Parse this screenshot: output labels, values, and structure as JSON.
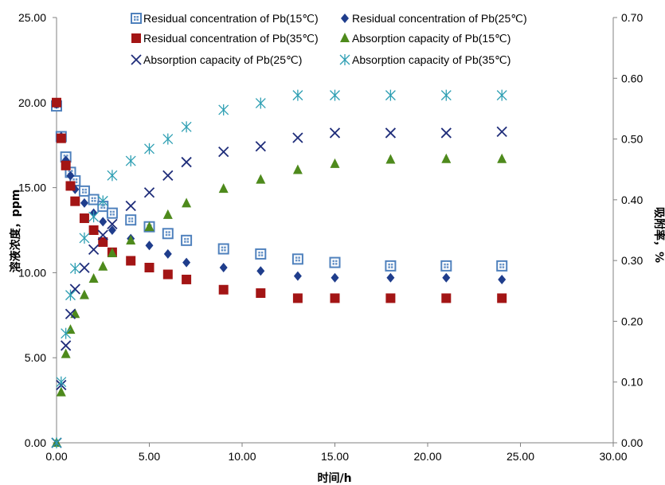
{
  "chart_data": {
    "type": "scatter",
    "xlabel": "时间/h",
    "ylabel_left": "溶液浓度，ppm",
    "ylabel_right": "吸附率，%",
    "xlim": [
      0,
      30
    ],
    "ylim_left": [
      0,
      25
    ],
    "ylim_right": [
      0,
      0.7
    ],
    "x_ticks": [
      "0.00",
      "5.00",
      "10.00",
      "15.00",
      "20.00",
      "25.00",
      "30.00"
    ],
    "y_left_ticks": [
      "0.00",
      "5.00",
      "10.00",
      "15.00",
      "20.00",
      "25.00"
    ],
    "y_right_ticks": [
      "0.00",
      "0.10",
      "0.20",
      "0.30",
      "0.40",
      "0.50",
      "0.60",
      "0.70"
    ],
    "grid": false,
    "legend_position": "top",
    "series": [
      {
        "name": "Residual concentration of Pb(15℃)",
        "axis": "left",
        "marker": "square-grid",
        "color": "#4F81BD",
        "x": [
          0,
          0.25,
          0.5,
          0.75,
          1,
          1.5,
          2,
          2.5,
          3,
          4,
          5,
          6,
          7,
          9,
          11,
          13,
          15,
          18,
          21,
          24
        ],
        "y": [
          19.8,
          18.0,
          16.8,
          15.9,
          15.4,
          14.8,
          14.3,
          13.9,
          13.5,
          13.1,
          12.7,
          12.3,
          11.9,
          11.4,
          11.1,
          10.8,
          10.6,
          10.4,
          10.4,
          10.4
        ]
      },
      {
        "name": "Residual concentration of Pb(25℃)",
        "axis": "left",
        "marker": "diamond",
        "color": "#1F3D8C",
        "x": [
          0,
          0.25,
          0.5,
          0.75,
          1,
          1.5,
          2,
          2.5,
          3,
          4,
          5,
          6,
          7,
          9,
          11,
          13,
          15,
          18,
          21,
          24
        ],
        "y": [
          19.9,
          18.0,
          16.6,
          15.7,
          14.9,
          14.1,
          13.5,
          13.0,
          12.5,
          12.0,
          11.6,
          11.1,
          10.6,
          10.3,
          10.1,
          9.8,
          9.7,
          9.7,
          9.7,
          9.6
        ]
      },
      {
        "name": "Residual concentration of Pb(35℃)",
        "axis": "left",
        "marker": "square",
        "color": "#A31515",
        "x": [
          0,
          0.25,
          0.5,
          0.75,
          1,
          1.5,
          2,
          2.5,
          3,
          4,
          5,
          6,
          7,
          9,
          11,
          13,
          15,
          18,
          21,
          24
        ],
        "y": [
          20.0,
          17.9,
          16.3,
          15.1,
          14.2,
          13.2,
          12.5,
          11.8,
          11.2,
          10.7,
          10.3,
          9.9,
          9.6,
          9.0,
          8.8,
          8.5,
          8.5,
          8.5,
          8.5,
          8.5
        ]
      },
      {
        "name": "Absorption capacity of Pb(15℃)",
        "axis": "right",
        "marker": "triangle",
        "color": "#4E8A1C",
        "x": [
          0,
          0.25,
          0.5,
          0.75,
          1,
          1.5,
          2,
          2.5,
          3,
          4,
          5,
          6,
          7,
          9,
          11,
          13,
          15,
          18,
          21,
          24
        ],
        "y": [
          0.0,
          0.083,
          0.146,
          0.186,
          0.212,
          0.243,
          0.27,
          0.29,
          0.312,
          0.333,
          0.355,
          0.375,
          0.394,
          0.418,
          0.433,
          0.449,
          0.459,
          0.466,
          0.467,
          0.467
        ]
      },
      {
        "name": "Absorption capacity of Pb(25℃)",
        "axis": "right",
        "marker": "x",
        "color": "#1F2D7A",
        "x": [
          0,
          0.25,
          0.5,
          0.75,
          1,
          1.5,
          2,
          2.5,
          3,
          4,
          5,
          6,
          7,
          9,
          11,
          13,
          15,
          18,
          21,
          24
        ],
        "y": [
          0.0,
          0.095,
          0.16,
          0.212,
          0.253,
          0.288,
          0.318,
          0.342,
          0.36,
          0.39,
          0.412,
          0.44,
          0.462,
          0.479,
          0.488,
          0.502,
          0.51,
          0.51,
          0.51,
          0.512
        ]
      },
      {
        "name": "Absorption capacity of Pb(35℃)",
        "axis": "right",
        "marker": "asterisk",
        "color": "#2E9FB3",
        "x": [
          0,
          0.25,
          0.5,
          0.75,
          1,
          1.5,
          2,
          2.5,
          3,
          4,
          5,
          6,
          7,
          9,
          11,
          13,
          15,
          18,
          21,
          24
        ],
        "y": [
          0.0,
          0.1,
          0.18,
          0.243,
          0.287,
          0.337,
          0.372,
          0.398,
          0.44,
          0.464,
          0.484,
          0.5,
          0.52,
          0.548,
          0.559,
          0.572,
          0.572,
          0.572,
          0.572,
          0.572
        ]
      }
    ]
  }
}
